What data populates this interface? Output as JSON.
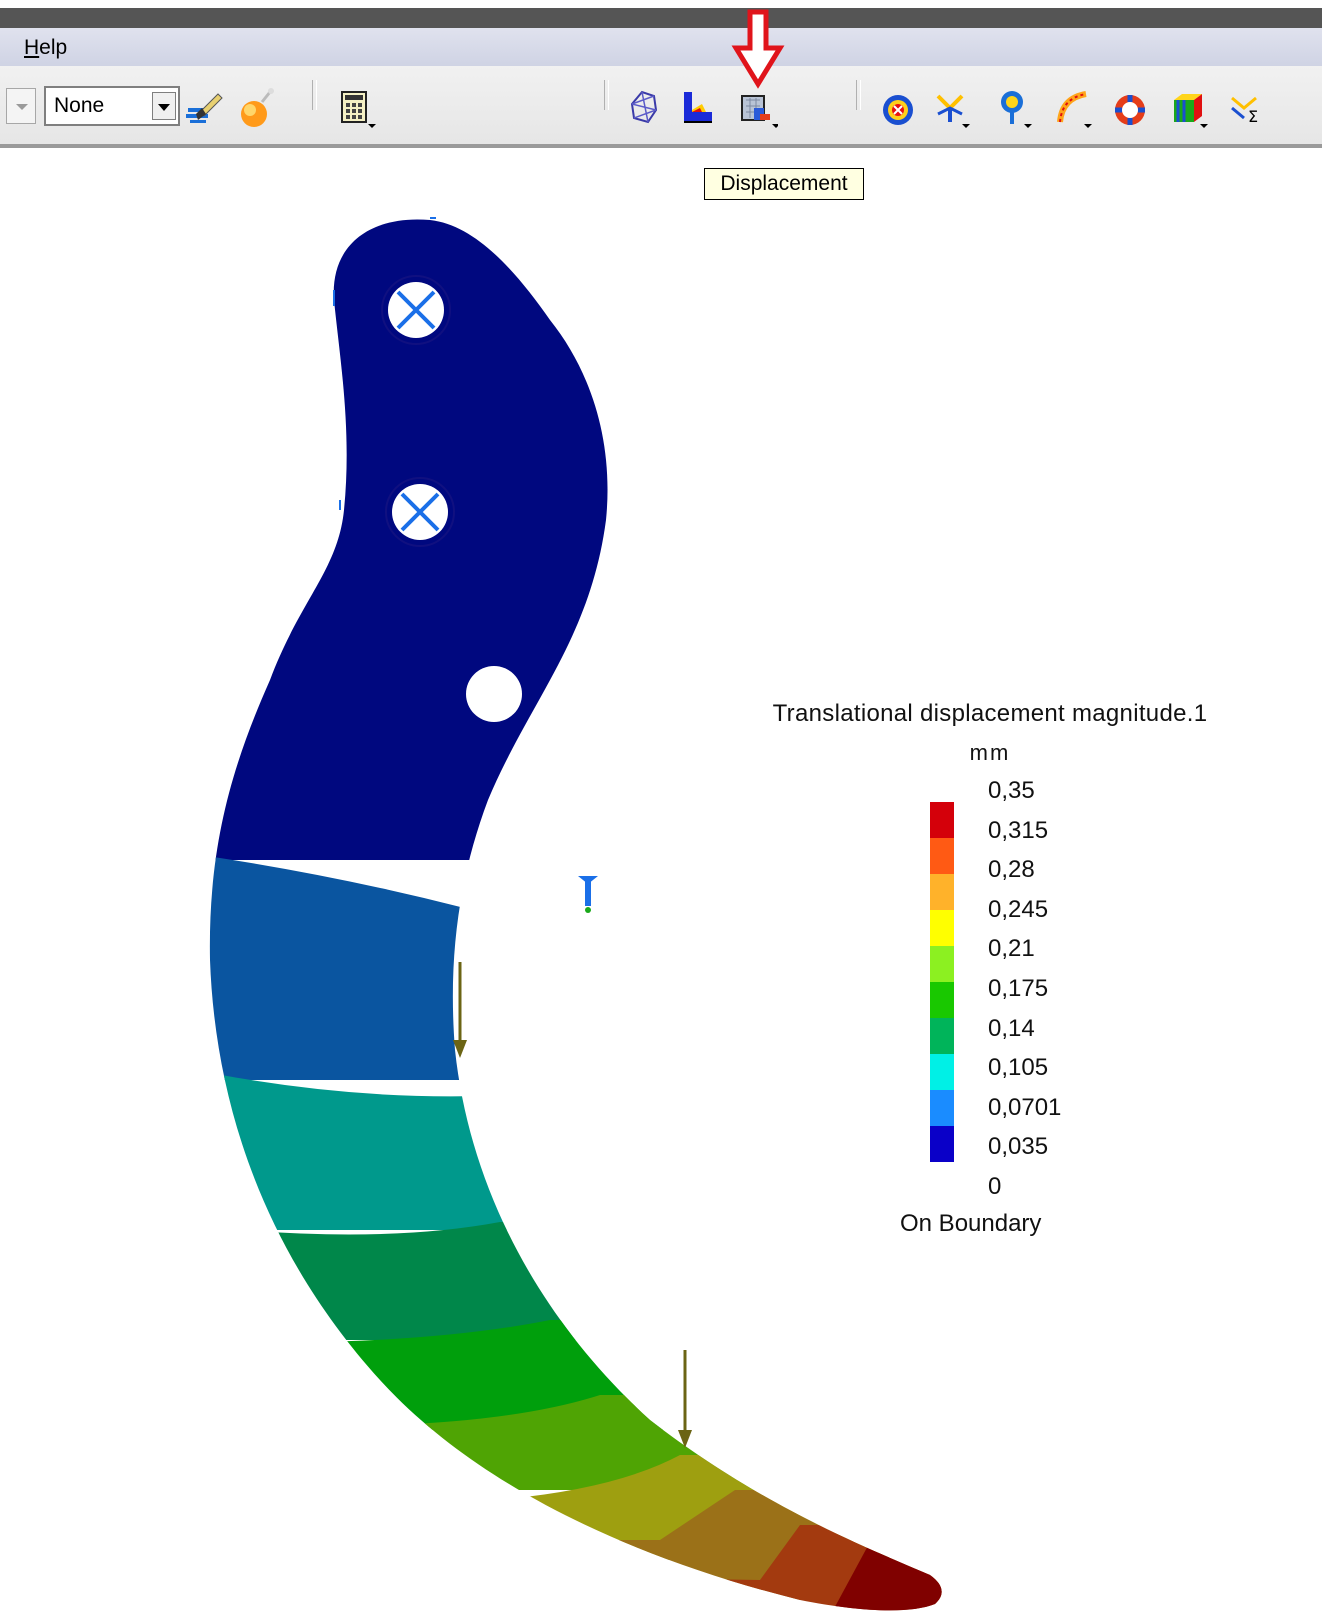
{
  "menubar": {
    "help_label": "Help"
  },
  "toolbar": {
    "combo_value": "None",
    "icons": [
      "paintbrush-icon",
      "sphere-icon",
      "calculator-icon",
      "mesh-icon",
      "deformation-icon",
      "displacement-icon",
      "target-icon",
      "vector-icon",
      "probe-icon",
      "arc-icon",
      "lifebuoy-icon",
      "cube-icon",
      "sigma-icon"
    ]
  },
  "tooltip": {
    "text": "Displacement"
  },
  "annotation": {
    "arrow_color": "#e0141b"
  },
  "legend": {
    "title": "Translational displacement magnitude.1",
    "unit": "mm",
    "values": [
      "0,35",
      "0,315",
      "0,28",
      "0,245",
      "0,21",
      "0,175",
      "0,14",
      "0,105",
      "0,0701",
      "0,035",
      "0"
    ],
    "colors": [
      "#d4000a",
      "#ff5a14",
      "#ffb22a",
      "#ffff00",
      "#8cf021",
      "#19c800",
      "#00b45a",
      "#00f0e6",
      "#1a8cff",
      "#0a00c8"
    ],
    "footer": "On Boundary"
  },
  "part": {
    "band_colors": [
      "#00087f",
      "#0a55a0",
      "#00998c",
      "#00874a",
      "#009f0c",
      "#4fa404",
      "#9e9f10",
      "#9b7118",
      "#a33a0f",
      "#800100"
    ]
  }
}
